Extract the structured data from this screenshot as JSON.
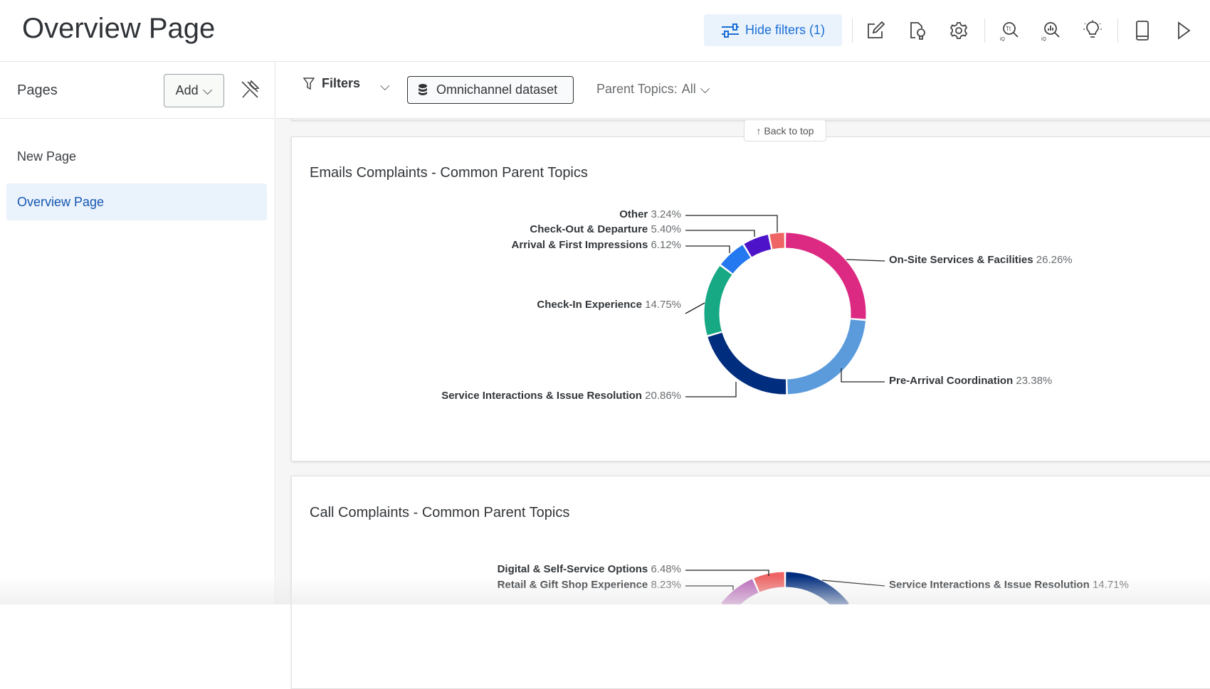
{
  "header": {
    "title": "Overview Page",
    "hide_filters_label": "Hide filters (1)",
    "icons": [
      "edit-icon",
      "insights-page-icon",
      "settings-icon",
      "text-iq-icon",
      "stats-iq-icon",
      "lightbulb-icon",
      "mobile-preview-icon",
      "play-icon"
    ]
  },
  "sidebar": {
    "title": "Pages",
    "add_label": "Add",
    "items": [
      {
        "label": "New Page",
        "active": false
      },
      {
        "label": "Overview Page",
        "active": true
      }
    ]
  },
  "filterbar": {
    "filters_label": "Filters",
    "dataset_label": "Omnichannel dataset",
    "parent_topics_label": "Parent Topics:",
    "parent_topics_value": "All"
  },
  "back_to_top": "↑ Back to top",
  "colors": {
    "accent": "#1a6fd6",
    "active_bg": "#eaf2fc"
  },
  "chart_data": [
    {
      "type": "pie",
      "title": "Emails Complaints - Common Parent Topics",
      "donut": true,
      "slices": [
        {
          "label": "On-Site Services & Facilities",
          "pct": "26.26%",
          "value": 26.26,
          "color": "#dc2a82"
        },
        {
          "label": "Pre-Arrival Coordination",
          "pct": "23.38%",
          "value": 23.38,
          "color": "#5b9bdc"
        },
        {
          "label": "Service Interactions & Issue Resolution",
          "pct": "20.86%",
          "value": 20.86,
          "color": "#002d7e"
        },
        {
          "label": "Check-In Experience",
          "pct": "14.75%",
          "value": 14.75,
          "color": "#17a884"
        },
        {
          "label": "Arrival & First Impressions",
          "pct": "6.12%",
          "value": 6.12,
          "color": "#2478f0"
        },
        {
          "label": "Check-Out & Departure",
          "pct": "5.40%",
          "value": 5.4,
          "color": "#4d13c8"
        },
        {
          "label": "Other",
          "pct": "3.24%",
          "value": 3.24,
          "color": "#ef6464"
        }
      ]
    },
    {
      "type": "pie",
      "title": "Call Complaints - Common Parent Topics",
      "donut": true,
      "slices": [
        {
          "label": "Service Interactions & Issue Resolution",
          "pct": "14.71%",
          "value": 14.71,
          "color": "#002d7e"
        },
        {
          "label": "Retail & Gift Shop Experience",
          "pct": "8.23%",
          "value": 8.23,
          "color": "#b866b8"
        },
        {
          "label": "Digital & Self-Service Options",
          "pct": "6.48%",
          "value": 6.48,
          "color": "#ef6464"
        }
      ]
    }
  ]
}
